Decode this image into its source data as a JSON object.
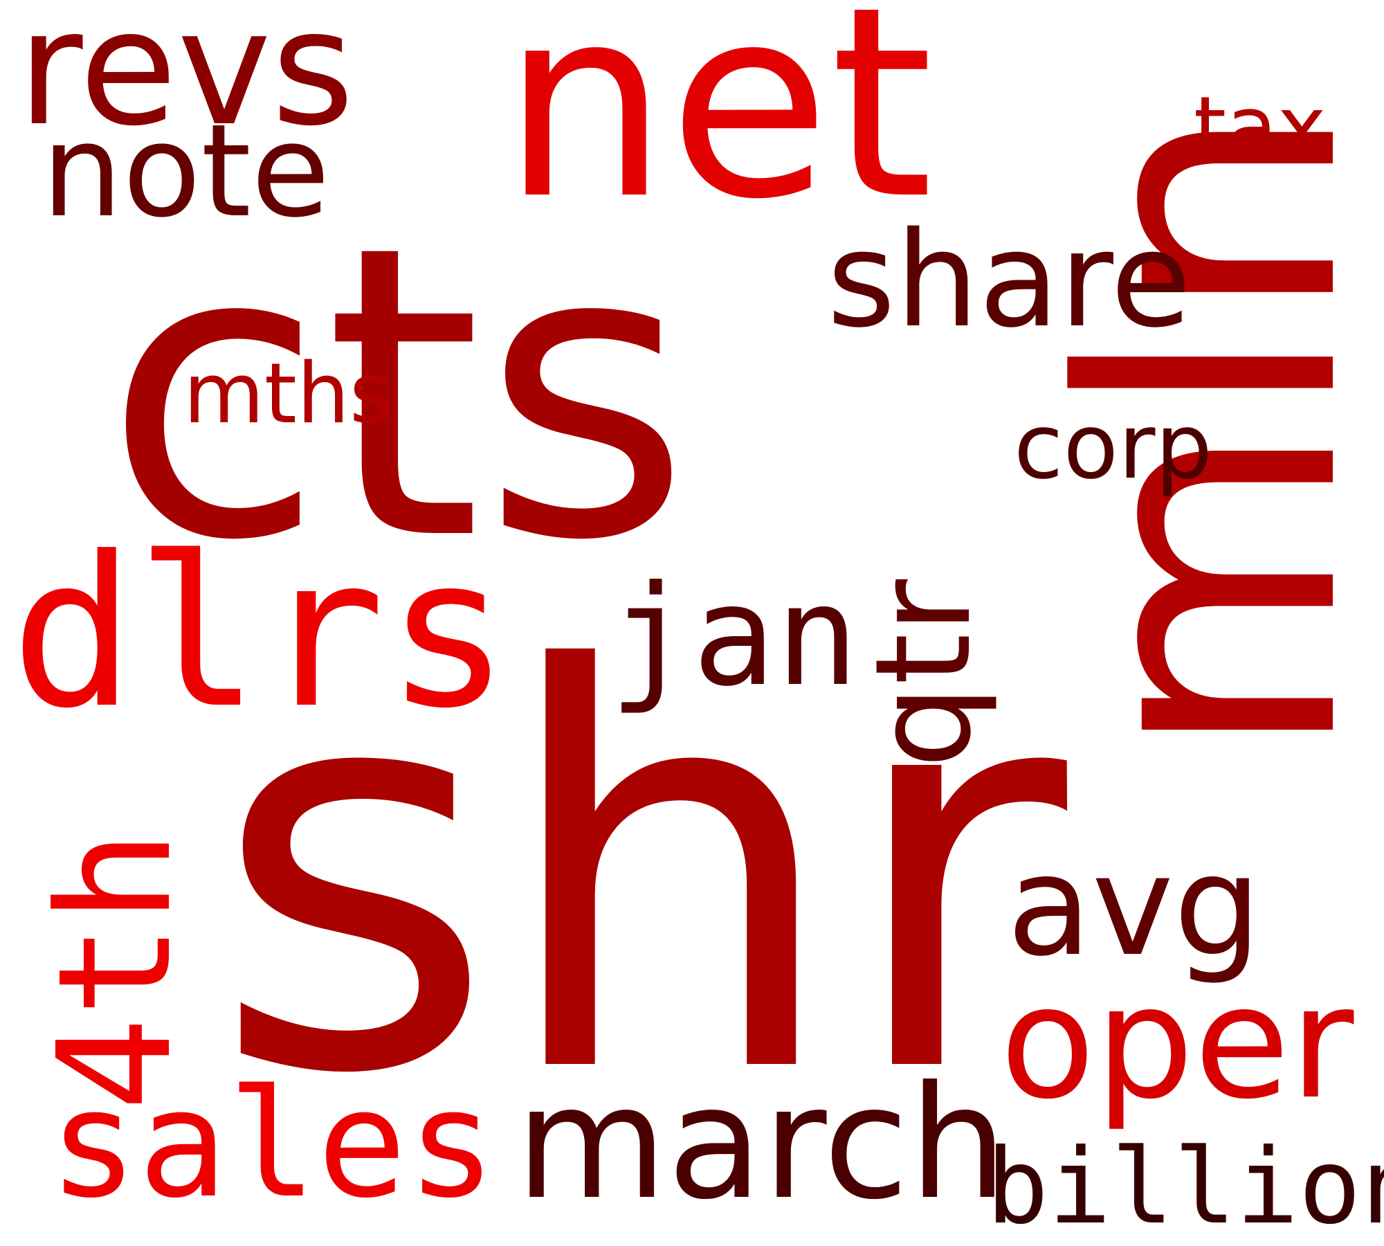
{
  "words": {
    "shr": {
      "text": "shr",
      "color": "#a90000"
    },
    "cts": {
      "text": "cts",
      "color": "#a50000"
    },
    "net": {
      "text": "net",
      "color": "#e30000"
    },
    "mln": {
      "text": "mln",
      "color": "#b20000"
    },
    "dlrs": {
      "text": "dlrs",
      "color": "#ee0000"
    },
    "revs": {
      "text": "revs",
      "color": "#8a0000"
    },
    "note": {
      "text": "note",
      "color": "#640000"
    },
    "share": {
      "text": "share",
      "color": "#5a0000"
    },
    "mths": {
      "text": "mths",
      "color": "#b00000"
    },
    "corp": {
      "text": "corp",
      "color": "#4e0000"
    },
    "tax": {
      "text": "tax",
      "color": "#b20000"
    },
    "qtr": {
      "text": "qtr",
      "color": "#5e0000"
    },
    "jan": {
      "text": "jan",
      "color": "#560000"
    },
    "4th": {
      "text": "4th",
      "color": "#ee0000"
    },
    "avg": {
      "text": "avg",
      "color": "#600000"
    },
    "oper": {
      "text": "oper",
      "color": "#d60000"
    },
    "sales": {
      "text": "sales",
      "color": "#ee0000"
    },
    "march": {
      "text": "march",
      "color": "#4a0000"
    },
    "billion": {
      "text": "billion",
      "color": "#360000"
    }
  }
}
